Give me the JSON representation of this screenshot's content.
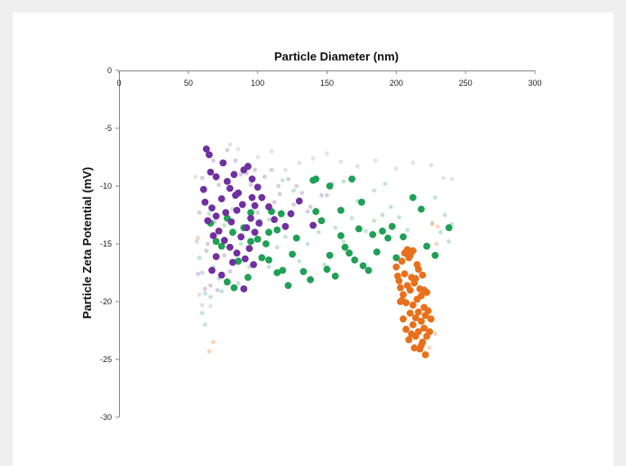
{
  "chart_data": {
    "type": "scatter",
    "title": "",
    "xlabel": "Particle Diameter (nm)",
    "ylabel": "Particle Zeta Potential (mV)",
    "x_axis_position": "top",
    "xlim": [
      0,
      300
    ],
    "ylim": [
      -30,
      0
    ],
    "xticks": [
      0,
      50,
      100,
      150,
      200,
      250,
      300
    ],
    "yticks": [
      0,
      -5,
      -10,
      -15,
      -20,
      -25,
      -30
    ],
    "grid": false,
    "legend": "none",
    "colors": {
      "purple": "#7030a0",
      "green": "#1fa055",
      "orange": "#e8701a"
    },
    "series": [
      {
        "color": "#7030a0",
        "opacity": 1,
        "points": [
          [
            63,
            -6.8
          ],
          [
            65,
            -7.3
          ],
          [
            66,
            -8.8
          ],
          [
            70,
            -9.2
          ],
          [
            75,
            -8.0
          ],
          [
            78,
            -9.6
          ],
          [
            80,
            -10.2
          ],
          [
            83,
            -9.0
          ],
          [
            86,
            -10.6
          ],
          [
            90,
            -8.6
          ],
          [
            93,
            -8.3
          ],
          [
            96,
            -9.4
          ],
          [
            100,
            -10.1
          ],
          [
            103,
            -11.0
          ],
          [
            61,
            -10.3
          ],
          [
            62,
            -11.4
          ],
          [
            67,
            -11.9
          ],
          [
            70,
            -12.6
          ],
          [
            74,
            -11.1
          ],
          [
            77,
            -12.3
          ],
          [
            81,
            -13.1
          ],
          [
            85,
            -12.1
          ],
          [
            89,
            -11.6
          ],
          [
            92,
            -13.6
          ],
          [
            95,
            -12.8
          ],
          [
            98,
            -14.0
          ],
          [
            101,
            -13.2
          ],
          [
            72,
            -13.9
          ],
          [
            76,
            -14.7
          ],
          [
            80,
            -15.3
          ],
          [
            85,
            -15.8
          ],
          [
            88,
            -14.4
          ],
          [
            91,
            -16.3
          ],
          [
            94,
            -15.4
          ],
          [
            97,
            -16.8
          ],
          [
            70,
            -16.1
          ],
          [
            67,
            -17.3
          ],
          [
            74,
            -17.7
          ],
          [
            82,
            -16.6
          ],
          [
            90,
            -18.9
          ],
          [
            108,
            -11.8
          ],
          [
            112,
            -12.9
          ],
          [
            120,
            -13.5
          ],
          [
            124,
            -12.4
          ],
          [
            130,
            -11.3
          ],
          [
            140,
            -13.4
          ],
          [
            96,
            -11.0
          ],
          [
            98,
            -11.7
          ],
          [
            84,
            -10.8
          ],
          [
            64,
            -13.0
          ],
          [
            68,
            -14.3
          ]
        ]
      },
      {
        "color": "#1fa055",
        "opacity": 1,
        "points": [
          [
            66,
            -13.2
          ],
          [
            70,
            -14.8
          ],
          [
            74,
            -15.2
          ],
          [
            78,
            -12.8
          ],
          [
            82,
            -14.0
          ],
          [
            86,
            -16.5
          ],
          [
            90,
            -13.6
          ],
          [
            95,
            -12.3
          ],
          [
            100,
            -14.6
          ],
          [
            103,
            -16.2
          ],
          [
            106,
            -15.0
          ],
          [
            108,
            -16.4
          ],
          [
            110,
            -12.2
          ],
          [
            114,
            -13.8
          ],
          [
            118,
            -17.3
          ],
          [
            122,
            -18.6
          ],
          [
            125,
            -15.9
          ],
          [
            128,
            -14.5
          ],
          [
            133,
            -17.4
          ],
          [
            138,
            -18.1
          ],
          [
            142,
            -12.2
          ],
          [
            146,
            -13.0
          ],
          [
            150,
            -17.2
          ],
          [
            152,
            -16.0
          ],
          [
            156,
            -17.8
          ],
          [
            160,
            -14.3
          ],
          [
            163,
            -15.3
          ],
          [
            166,
            -15.8
          ],
          [
            170,
            -16.4
          ],
          [
            173,
            -13.7
          ],
          [
            176,
            -16.9
          ],
          [
            180,
            -17.3
          ],
          [
            183,
            -14.2
          ],
          [
            186,
            -15.7
          ],
          [
            190,
            -13.9
          ],
          [
            194,
            -14.5
          ],
          [
            197,
            -13.5
          ],
          [
            200,
            -16.2
          ],
          [
            205,
            -14.4
          ],
          [
            212,
            -11.0
          ],
          [
            218,
            -12.0
          ],
          [
            222,
            -15.2
          ],
          [
            228,
            -16.0
          ],
          [
            238,
            -13.6
          ],
          [
            142,
            -9.4
          ],
          [
            152,
            -10.0
          ],
          [
            160,
            -12.1
          ],
          [
            168,
            -9.4
          ],
          [
            175,
            -11.4
          ],
          [
            78,
            -18.3
          ],
          [
            83,
            -18.8
          ],
          [
            93,
            -17.9
          ],
          [
            117,
            -12.4
          ],
          [
            140,
            -9.5
          ],
          [
            95,
            -14.8
          ],
          [
            108,
            -14.0
          ],
          [
            114,
            -17.5
          ]
        ]
      },
      {
        "color": "#e8701a",
        "opacity": 1,
        "points": [
          [
            200,
            -17.0
          ],
          [
            202,
            -18.2
          ],
          [
            204,
            -16.5
          ],
          [
            205,
            -19.4
          ],
          [
            206,
            -17.6
          ],
          [
            207,
            -20.1
          ],
          [
            208,
            -18.6
          ],
          [
            209,
            -16.2
          ],
          [
            210,
            -21.0
          ],
          [
            210,
            -19.0
          ],
          [
            211,
            -17.9
          ],
          [
            212,
            -22.0
          ],
          [
            212,
            -20.3
          ],
          [
            213,
            -18.4
          ],
          [
            214,
            -23.0
          ],
          [
            214,
            -21.4
          ],
          [
            215,
            -19.8
          ],
          [
            215,
            -16.8
          ],
          [
            216,
            -22.6
          ],
          [
            216,
            -20.9
          ],
          [
            217,
            -18.9
          ],
          [
            217,
            -24.1
          ],
          [
            218,
            -21.7
          ],
          [
            218,
            -19.5
          ],
          [
            219,
            -23.5
          ],
          [
            219,
            -17.7
          ],
          [
            220,
            -22.3
          ],
          [
            220,
            -20.5
          ],
          [
            221,
            -24.6
          ],
          [
            221,
            -21.2
          ],
          [
            222,
            -19.2
          ],
          [
            222,
            -23.0
          ],
          [
            223,
            -20.8
          ],
          [
            224,
            -22.6
          ],
          [
            225,
            -21.5
          ],
          [
            203,
            -20.0
          ],
          [
            205,
            -21.5
          ],
          [
            207,
            -22.4
          ],
          [
            209,
            -23.3
          ],
          [
            211,
            -22.8
          ],
          [
            213,
            -24.0
          ],
          [
            206,
            -15.8
          ],
          [
            208,
            -15.5
          ],
          [
            210,
            -16.0
          ],
          [
            212,
            -15.6
          ],
          [
            214,
            -18.0
          ],
          [
            216,
            -17.2
          ],
          [
            203,
            -18.8
          ],
          [
            204,
            -19.9
          ],
          [
            218,
            -23.8
          ],
          [
            201,
            -17.8
          ],
          [
            220,
            -19.0
          ]
        ]
      },
      {
        "color": "#a88bc8",
        "opacity": 0.45,
        "points": [
          [
            60,
            -9.3
          ],
          [
            68,
            -7.8
          ],
          [
            72,
            -9.9
          ],
          [
            88,
            -9.0
          ],
          [
            98,
            -8.6
          ],
          [
            105,
            -9.2
          ],
          [
            110,
            -8.6
          ],
          [
            115,
            -10.0
          ],
          [
            122,
            -9.4
          ],
          [
            132,
            -10.6
          ],
          [
            138,
            -11.8
          ],
          [
            146,
            -10.8
          ],
          [
            154,
            -9.8
          ],
          [
            116,
            -10.7
          ],
          [
            126,
            -11.6
          ],
          [
            58,
            -12.3
          ],
          [
            63,
            -15.6
          ],
          [
            66,
            -18.6
          ],
          [
            71,
            -19.0
          ],
          [
            80,
            -17.4
          ],
          [
            100,
            -12.3
          ],
          [
            112,
            -11.4
          ],
          [
            64,
            -15.0
          ],
          [
            76,
            -16.0
          ],
          [
            128,
            -10.0
          ],
          [
            136,
            -12.2
          ],
          [
            150,
            -10.8
          ],
          [
            160,
            -12.0
          ],
          [
            57,
            -17.6
          ],
          [
            62,
            -18.9
          ],
          [
            69,
            -13.1
          ],
          [
            78,
            -6.9
          ],
          [
            84,
            -7.8
          ],
          [
            92,
            -8.9
          ],
          [
            95,
            -9.9
          ],
          [
            102,
            -13.4
          ]
        ]
      },
      {
        "color": "#8fcfaa",
        "opacity": 0.55,
        "points": [
          [
            56,
            -14.8
          ],
          [
            58,
            -16.2
          ],
          [
            60,
            -17.5
          ],
          [
            62,
            -19.3
          ],
          [
            65,
            -12.4
          ],
          [
            68,
            -17.0
          ],
          [
            72,
            -18.0
          ],
          [
            76,
            -13.4
          ],
          [
            82,
            -12.0
          ],
          [
            88,
            -15.0
          ],
          [
            94,
            -17.0
          ],
          [
            102,
            -13.0
          ],
          [
            108,
            -17.0
          ],
          [
            114,
            -15.3
          ],
          [
            120,
            -14.4
          ],
          [
            130,
            -16.5
          ],
          [
            136,
            -15.0
          ],
          [
            144,
            -14.0
          ],
          [
            148,
            -16.8
          ],
          [
            156,
            -13.6
          ],
          [
            162,
            -14.8
          ],
          [
            168,
            -12.8
          ],
          [
            176,
            -11.4
          ],
          [
            184,
            -13.0
          ],
          [
            190,
            -12.5
          ],
          [
            196,
            -11.8
          ],
          [
            202,
            -12.7
          ],
          [
            208,
            -13.8
          ],
          [
            226,
            -13.2
          ],
          [
            232,
            -14.0
          ],
          [
            238,
            -14.8
          ],
          [
            240,
            -13.3
          ],
          [
            228,
            -11.0
          ],
          [
            235,
            -12.5
          ],
          [
            192,
            -9.8
          ],
          [
            184,
            -10.4
          ],
          [
            172,
            -11.3
          ],
          [
            126,
            -10.4
          ],
          [
            118,
            -9.5
          ],
          [
            60,
            -21.0
          ],
          [
            62,
            -22.0
          ],
          [
            66,
            -19.6
          ],
          [
            74,
            -19.1
          ],
          [
            86,
            -18.4
          ],
          [
            96,
            -13.9
          ],
          [
            108,
            -12.9
          ],
          [
            162,
            -9.6
          ],
          [
            178,
            -13.9
          ]
        ]
      },
      {
        "color": "#f5b98c",
        "opacity": 0.6,
        "points": [
          [
            57,
            -14.5
          ],
          [
            65,
            -24.3
          ],
          [
            68,
            -23.5
          ],
          [
            226,
            -13.3
          ],
          [
            230,
            -13.5
          ],
          [
            228,
            -22.8
          ],
          [
            224,
            -24.0
          ],
          [
            229,
            -15.0
          ]
        ]
      },
      {
        "color": "#dcdcdc",
        "opacity": 0.8,
        "points": [
          [
            80,
            -6.4
          ],
          [
            86,
            -6.8
          ],
          [
            100,
            -7.5
          ],
          [
            110,
            -7.0
          ],
          [
            120,
            -8.6
          ],
          [
            130,
            -8.0
          ],
          [
            140,
            -7.6
          ],
          [
            150,
            -7.2
          ],
          [
            160,
            -7.9
          ],
          [
            172,
            -8.3
          ],
          [
            185,
            -7.8
          ],
          [
            200,
            -8.5
          ],
          [
            212,
            -8.0
          ],
          [
            225,
            -8.2
          ],
          [
            234,
            -9.3
          ],
          [
            240,
            -9.4
          ],
          [
            55,
            -9.2
          ],
          [
            58,
            -19.4
          ],
          [
            60,
            -20.3
          ],
          [
            66,
            -20.4
          ]
        ]
      }
    ]
  }
}
